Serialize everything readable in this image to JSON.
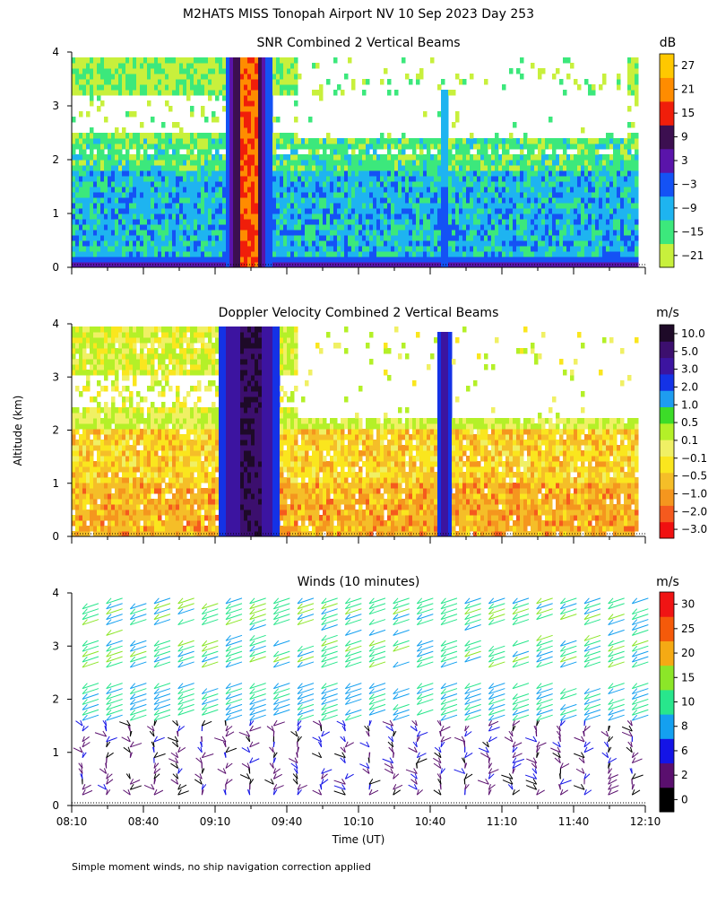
{
  "header": {
    "title": "M2HATS MISS Tonopah Airport NV  10 Sep 2023 Day 253"
  },
  "footer": {
    "note": "Simple moment winds, no ship navigation correction applied"
  },
  "shared_axes": {
    "ylabel": "Altitude (km)",
    "xlabel": "Time (UT)",
    "x_ticks": [
      "08:10",
      "08:40",
      "09:10",
      "09:40",
      "10:10",
      "10:40",
      "11:10",
      "11:40",
      "12:10"
    ],
    "y_ticks": [
      "0",
      "1",
      "2",
      "3",
      "4"
    ]
  },
  "colors": {
    "snr": [
      "#c8f03c",
      "#3ce87c",
      "#1eb4f0",
      "#1452f5",
      "#5a14aa",
      "#3c0f50",
      "#f01e0a",
      "#ff8c00",
      "#ffc800"
    ],
    "doppler": [
      "#f01010",
      "#f55a1e",
      "#f5961e",
      "#f5be28",
      "#fae61e",
      "#f0f064",
      "#b4f028",
      "#3cdc28",
      "#1e9cf0",
      "#1432e6",
      "#3c14a0",
      "#3c0f6e",
      "#1e0a28"
    ],
    "winds": [
      "#000000",
      "#5a0f6e",
      "#1414e6",
      "#14a0f0",
      "#28e68c",
      "#8ce628",
      "#f5aa14",
      "#f55a0a",
      "#f01414"
    ]
  },
  "chart_data": [
    {
      "type": "heatmap",
      "title": "SNR Combined 2 Vertical Beams",
      "unit": "dB",
      "x_range": [
        "08:10",
        "12:10"
      ],
      "ylim": [
        0,
        4
      ],
      "colorbar_labels": [
        "27",
        "21",
        "15",
        "9",
        "3",
        "−3",
        "−9",
        "−15",
        "−21"
      ],
      "features": [
        {
          "x_start": "09:18",
          "x_end": "09:28",
          "value_range_dB": [
            15,
            27
          ]
        },
        {
          "x_start": "10:43",
          "x_end": "10:47",
          "value_range_dB": [
            -9,
            3
          ]
        }
      ]
    },
    {
      "type": "heatmap",
      "title": "Doppler Velocity Combined 2 Vertical Beams",
      "unit": "m/s",
      "x_range": [
        "08:10",
        "12:10"
      ],
      "ylim": [
        0,
        4
      ],
      "colorbar_labels": [
        "10.0",
        "5.0",
        "3.0",
        "2.0",
        "1.0",
        "0.5",
        "0.1",
        "−0.1",
        "−0.5",
        "−1.0",
        "−2.0",
        "−3.0"
      ],
      "features": [
        {
          "x_start": "09:16",
          "x_end": "09:32",
          "value_range_ms": [
            3.0,
            10.0
          ]
        },
        {
          "x_start": "10:43",
          "x_end": "10:48",
          "value_range_ms": [
            2.0,
            5.0
          ]
        }
      ]
    },
    {
      "type": "scatter",
      "title": "Winds (10 minutes)",
      "unit": "m/s",
      "x_range": [
        "08:10",
        "12:10"
      ],
      "ylim": [
        0,
        4
      ],
      "colorbar_labels": [
        "30",
        "25",
        "20",
        "15",
        "10",
        "8",
        "6",
        "2",
        "0"
      ],
      "x": [
        "08:10",
        "08:20",
        "08:30",
        "08:40",
        "08:50",
        "09:00",
        "09:10",
        "09:20",
        "09:30",
        "09:40",
        "09:50",
        "10:00",
        "10:10",
        "10:20",
        "10:30",
        "10:40",
        "10:50",
        "11:00",
        "11:10",
        "11:20",
        "11:30",
        "11:40",
        "11:50",
        "12:00"
      ]
    }
  ]
}
